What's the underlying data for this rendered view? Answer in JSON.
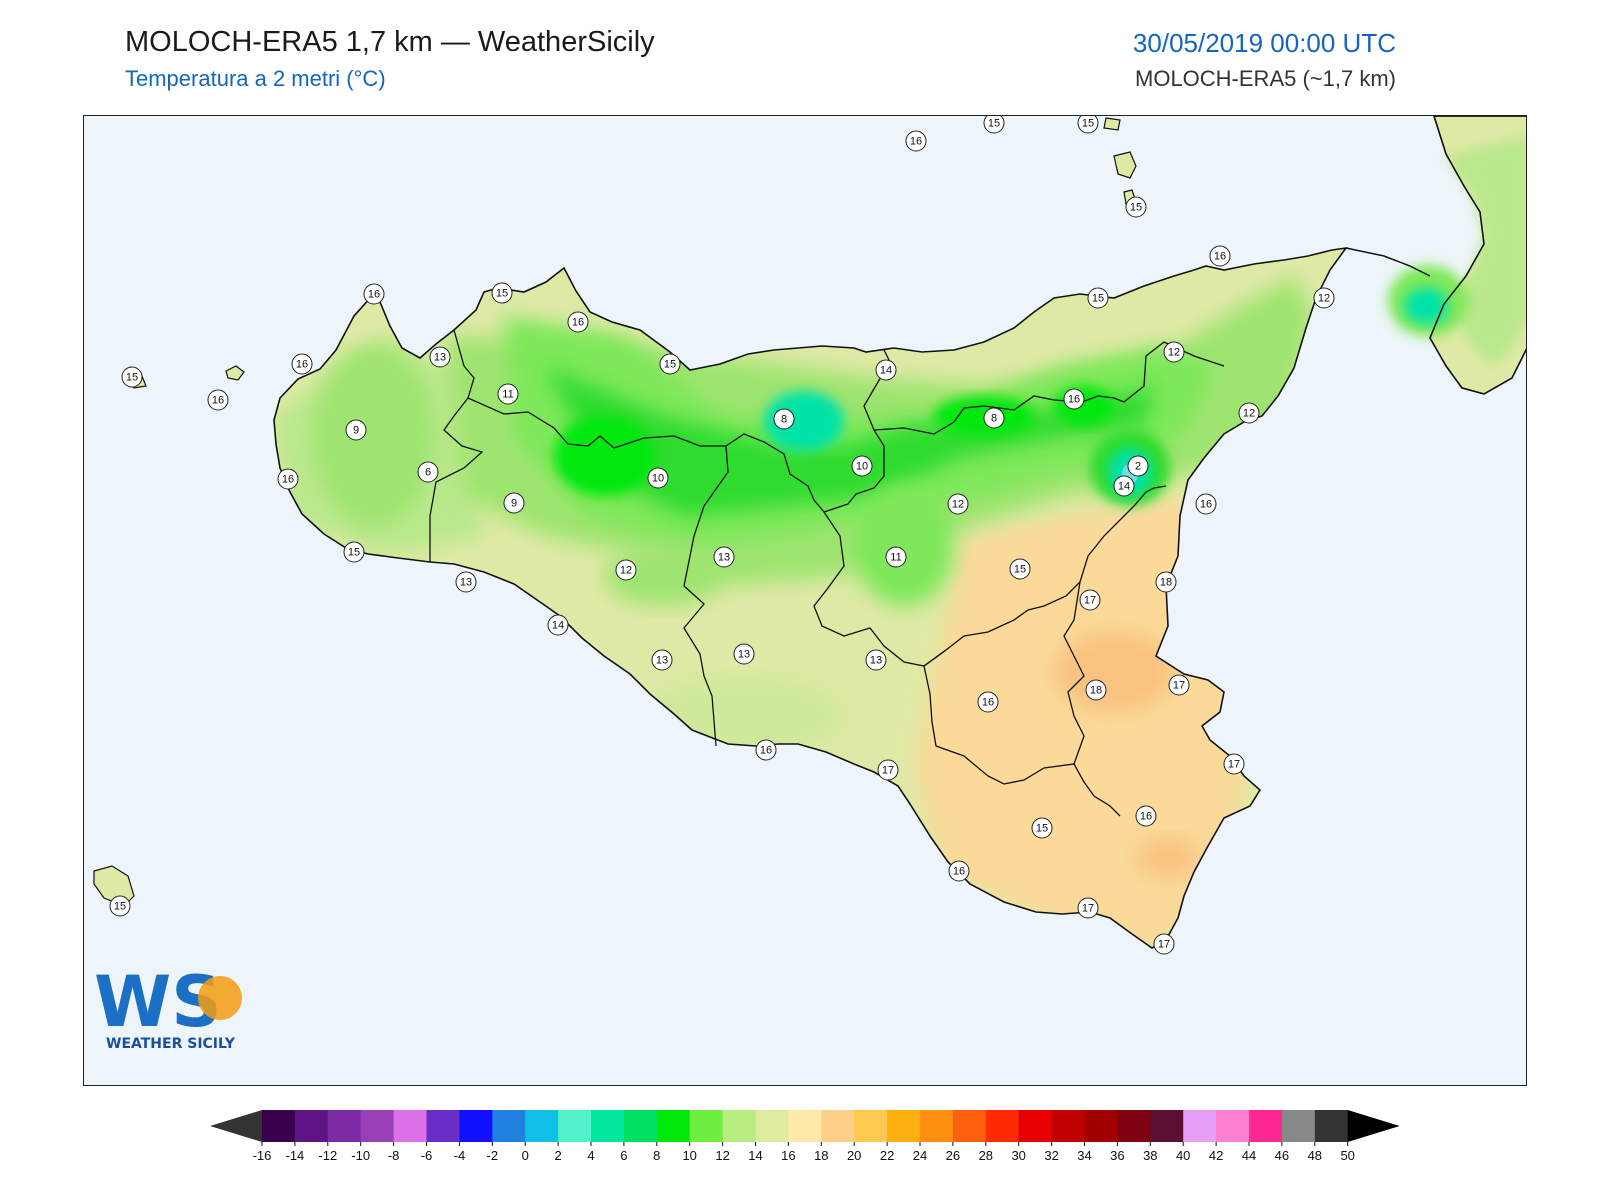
{
  "header": {
    "title": "MOLOCH-ERA5 1,7 km — WeatherSicily",
    "subtitle": "Temperatura a 2 metri (°C)",
    "datetime": "30/05/2019 00:00 UTC",
    "model": "MOLOCH-ERA5 (~1,7 km)"
  },
  "logo": {
    "letters": "WS",
    "brand": "WEATHER SICILY"
  },
  "colors": {
    "sea": "#eef5fa",
    "coast": "#111111",
    "t2": "#00e80a",
    "t6": "#00e2a8",
    "t9": "#2ddb2e",
    "t10": "#58ee3c",
    "t11": "#7ee85a",
    "t12": "#9fe46f",
    "t13": "#b9e88b",
    "t14": "#cfe99a",
    "t15": "#dfe9a6",
    "t16": "#f1e3a4",
    "t17": "#fbd998",
    "t18": "#f8c27f"
  },
  "stations": [
    {
      "value": "16"
    },
    {
      "value": "15"
    },
    {
      "value": "15"
    },
    {
      "value": "15"
    },
    {
      "value": "16"
    },
    {
      "value": "15"
    },
    {
      "value": "16"
    },
    {
      "value": "13"
    },
    {
      "value": "15"
    },
    {
      "value": "15"
    },
    {
      "value": "16"
    },
    {
      "value": "16"
    },
    {
      "value": "16"
    },
    {
      "value": "11"
    },
    {
      "value": "14"
    },
    {
      "value": "15"
    },
    {
      "value": "12"
    },
    {
      "value": "12"
    },
    {
      "value": "9"
    },
    {
      "value": "6"
    },
    {
      "value": "8"
    },
    {
      "value": "8"
    },
    {
      "value": "16"
    },
    {
      "value": "12"
    },
    {
      "value": "10"
    },
    {
      "value": "10"
    },
    {
      "value": "2"
    },
    {
      "value": "16"
    },
    {
      "value": "9"
    },
    {
      "value": "14"
    },
    {
      "value": "12"
    },
    {
      "value": "16"
    },
    {
      "value": "15"
    },
    {
      "value": "13"
    },
    {
      "value": "11"
    },
    {
      "value": "13"
    },
    {
      "value": "12"
    },
    {
      "value": "15"
    },
    {
      "value": "18"
    },
    {
      "value": "14"
    },
    {
      "value": "17"
    },
    {
      "value": "13"
    },
    {
      "value": "13"
    },
    {
      "value": "13"
    },
    {
      "value": "18"
    },
    {
      "value": "17"
    },
    {
      "value": "16"
    },
    {
      "value": "16"
    },
    {
      "value": "17"
    },
    {
      "value": "17"
    },
    {
      "value": "15"
    },
    {
      "value": "16"
    },
    {
      "value": "16"
    },
    {
      "value": "17"
    },
    {
      "value": "17"
    },
    {
      "value": "15"
    }
  ],
  "colorbar": {
    "labels": [
      "-16",
      "-14",
      "-12",
      "-10",
      "-8",
      "-6",
      "-4",
      "-2",
      "0",
      "2",
      "4",
      "6",
      "8",
      "10",
      "12",
      "14",
      "16",
      "18",
      "20",
      "22",
      "24",
      "26",
      "28",
      "30",
      "32",
      "34",
      "36",
      "38",
      "40",
      "42",
      "44",
      "46",
      "48",
      "50"
    ],
    "colors": [
      "#3a0050",
      "#5e1485",
      "#7d2aa5",
      "#9940b8",
      "#dc70e8",
      "#6a2ec8",
      "#1010ff",
      "#2080e0",
      "#10c0e8",
      "#50f0c8",
      "#00e8a0",
      "#00e060",
      "#00e80a",
      "#70ee40",
      "#b8ec80",
      "#dfeca0",
      "#ffe8a8",
      "#fdd088",
      "#ffc850",
      "#ffb010",
      "#ff9010",
      "#ff6010",
      "#ff2a00",
      "#e80000",
      "#c00000",
      "#a00000",
      "#800010",
      "#5a1030",
      "#e5a0f5",
      "#ff80d0",
      "#ff2890",
      "#888888",
      "#333333"
    ],
    "under": "#333333",
    "over": "#000000"
  }
}
